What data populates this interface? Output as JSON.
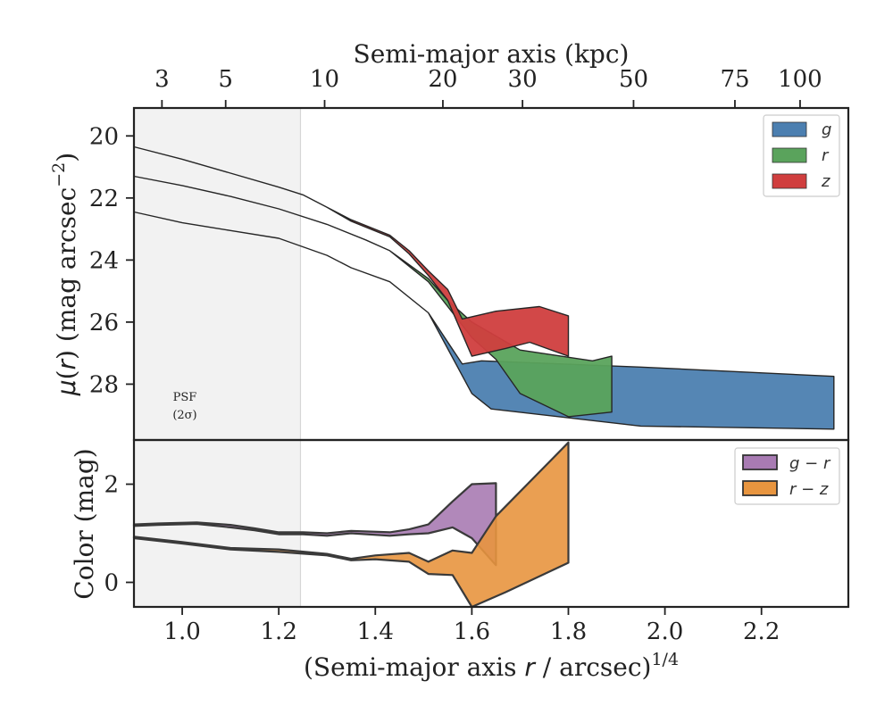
{
  "chart_data": [
    {
      "type": "area",
      "panel": "surface-brightness",
      "x_axis_label": "(Semi-major axis r / arcsec)^{1/4}",
      "x_axis_label_parts": {
        "pre": "(Semi-major axis ",
        "var": "r",
        "post": " / arcsec)",
        "sup": "1/4"
      },
      "ylabel_parts": {
        "mu": "μ",
        "paren_open": "(",
        "var": "r",
        "paren_close": ")",
        "unit": " (mag arcsec",
        "sup": "−2",
        "close": ")"
      },
      "top_xlabel": "Semi-major axis (kpc)",
      "top_ticks": [
        {
          "label": "3",
          "x": 0.958
        },
        {
          "label": "5",
          "x": 1.09
        },
        {
          "label": "10",
          "x": 1.295
        },
        {
          "label": "20",
          "x": 1.54
        },
        {
          "label": "30",
          "x": 1.705
        },
        {
          "label": "50",
          "x": 1.935
        },
        {
          "label": "75",
          "x": 2.145
        },
        {
          "label": "100",
          "x": 2.28
        }
      ],
      "xlim": [
        0.9,
        2.38
      ],
      "ylim": [
        29.8,
        19.1
      ],
      "y_inverted": true,
      "x_ticks": [
        "1.0",
        "1.2",
        "1.4",
        "1.6",
        "1.8",
        "2.0",
        "2.2"
      ],
      "y_ticks": [
        "20",
        "22",
        "24",
        "26",
        "28"
      ],
      "shaded_region": {
        "x0": 0.9,
        "x1": 1.245,
        "label_line1": "PSF",
        "label_line2": "(2σ)"
      },
      "legend": {
        "placement": "top-right",
        "entries": [
          "g",
          "r",
          "z"
        ]
      },
      "series": [
        {
          "name": "g",
          "color": "#4c7fb0",
          "upper": [
            [
              0.9,
              22.45
            ],
            [
              1.0,
              22.8
            ],
            [
              1.1,
              23.05
            ],
            [
              1.2,
              23.3
            ],
            [
              1.3,
              23.85
            ],
            [
              1.35,
              24.25
            ],
            [
              1.43,
              24.7
            ],
            [
              1.51,
              25.7
            ],
            [
              1.58,
              27.35
            ],
            [
              1.62,
              27.25
            ],
            [
              1.95,
              27.45
            ],
            [
              2.35,
              27.75
            ]
          ],
          "lower": [
            [
              0.9,
              22.45
            ],
            [
              1.0,
              22.8
            ],
            [
              1.1,
              23.05
            ],
            [
              1.2,
              23.3
            ],
            [
              1.3,
              23.85
            ],
            [
              1.35,
              24.25
            ],
            [
              1.43,
              24.7
            ],
            [
              1.51,
              25.7
            ],
            [
              1.6,
              28.3
            ],
            [
              1.64,
              28.8
            ],
            [
              1.95,
              29.35
            ],
            [
              2.35,
              29.45
            ]
          ]
        },
        {
          "name": "r",
          "color": "#5aa35c",
          "upper": [
            [
              0.9,
              21.3
            ],
            [
              1.0,
              21.6
            ],
            [
              1.1,
              21.95
            ],
            [
              1.2,
              22.35
            ],
            [
              1.3,
              22.85
            ],
            [
              1.38,
              23.35
            ],
            [
              1.43,
              23.7
            ],
            [
              1.51,
              24.6
            ],
            [
              1.55,
              25.3
            ],
            [
              1.6,
              26.0
            ],
            [
              1.7,
              26.9
            ],
            [
              1.85,
              27.25
            ],
            [
              1.89,
              27.1
            ]
          ],
          "lower": [
            [
              0.9,
              21.3
            ],
            [
              1.0,
              21.6
            ],
            [
              1.1,
              21.95
            ],
            [
              1.2,
              22.35
            ],
            [
              1.3,
              22.85
            ],
            [
              1.38,
              23.35
            ],
            [
              1.43,
              23.7
            ],
            [
              1.51,
              24.7
            ],
            [
              1.55,
              25.5
            ],
            [
              1.6,
              26.5
            ],
            [
              1.65,
              27.2
            ],
            [
              1.7,
              28.3
            ],
            [
              1.8,
              29.05
            ],
            [
              1.89,
              28.9
            ]
          ]
        },
        {
          "name": "z",
          "color": "#d03e3e",
          "upper": [
            [
              0.9,
              20.35
            ],
            [
              1.0,
              20.75
            ],
            [
              1.1,
              21.2
            ],
            [
              1.2,
              21.65
            ],
            [
              1.25,
              21.9
            ],
            [
              1.3,
              22.3
            ],
            [
              1.35,
              22.7
            ],
            [
              1.43,
              23.2
            ],
            [
              1.47,
              23.7
            ],
            [
              1.51,
              24.35
            ],
            [
              1.55,
              24.95
            ],
            [
              1.58,
              25.9
            ],
            [
              1.65,
              25.65
            ],
            [
              1.74,
              25.5
            ],
            [
              1.8,
              25.8
            ]
          ],
          "lower": [
            [
              0.9,
              20.35
            ],
            [
              1.0,
              20.75
            ],
            [
              1.1,
              21.2
            ],
            [
              1.2,
              21.65
            ],
            [
              1.25,
              21.9
            ],
            [
              1.3,
              22.3
            ],
            [
              1.35,
              22.75
            ],
            [
              1.43,
              23.25
            ],
            [
              1.47,
              23.8
            ],
            [
              1.51,
              24.5
            ],
            [
              1.55,
              25.3
            ],
            [
              1.6,
              27.1
            ],
            [
              1.67,
              26.85
            ],
            [
              1.72,
              26.65
            ],
            [
              1.8,
              27.1
            ]
          ]
        }
      ]
    },
    {
      "type": "area",
      "panel": "color",
      "ylabel": "Color (mag)",
      "xlim": [
        0.9,
        2.38
      ],
      "ylim": [
        -0.5,
        2.9
      ],
      "y_ticks": [
        "0",
        "2"
      ],
      "legend": {
        "placement": "top-right",
        "entries": [
          "g − r",
          "r − z"
        ]
      },
      "series": [
        {
          "name": "g − r",
          "color": "#a87bb3",
          "upper": [
            [
              0.9,
              1.18
            ],
            [
              0.95,
              1.2
            ],
            [
              1.03,
              1.22
            ],
            [
              1.1,
              1.17
            ],
            [
              1.15,
              1.1
            ],
            [
              1.2,
              1.02
            ],
            [
              1.25,
              1.02
            ],
            [
              1.3,
              1.0
            ],
            [
              1.35,
              1.05
            ],
            [
              1.43,
              1.02
            ],
            [
              1.47,
              1.08
            ],
            [
              1.51,
              1.18
            ],
            [
              1.56,
              1.65
            ],
            [
              1.6,
              2.0
            ],
            [
              1.65,
              2.02
            ]
          ],
          "lower": [
            [
              0.9,
              1.15
            ],
            [
              0.95,
              1.17
            ],
            [
              1.03,
              1.19
            ],
            [
              1.1,
              1.12
            ],
            [
              1.15,
              1.06
            ],
            [
              1.2,
              0.98
            ],
            [
              1.25,
              0.98
            ],
            [
              1.3,
              0.95
            ],
            [
              1.35,
              1.0
            ],
            [
              1.43,
              0.95
            ],
            [
              1.47,
              0.98
            ],
            [
              1.51,
              1.0
            ],
            [
              1.56,
              1.12
            ],
            [
              1.6,
              0.9
            ],
            [
              1.65,
              0.35
            ]
          ]
        },
        {
          "name": "r − z",
          "color": "#e8953f",
          "upper": [
            [
              0.9,
              0.93
            ],
            [
              1.0,
              0.82
            ],
            [
              1.1,
              0.7
            ],
            [
              1.2,
              0.67
            ],
            [
              1.3,
              0.58
            ],
            [
              1.35,
              0.48
            ],
            [
              1.4,
              0.55
            ],
            [
              1.47,
              0.6
            ],
            [
              1.51,
              0.42
            ],
            [
              1.56,
              0.65
            ],
            [
              1.6,
              0.6
            ],
            [
              1.65,
              1.35
            ],
            [
              1.8,
              2.85
            ]
          ],
          "lower": [
            [
              0.9,
              0.9
            ],
            [
              1.0,
              0.79
            ],
            [
              1.1,
              0.67
            ],
            [
              1.2,
              0.62
            ],
            [
              1.3,
              0.55
            ],
            [
              1.35,
              0.45
            ],
            [
              1.4,
              0.47
            ],
            [
              1.47,
              0.42
            ],
            [
              1.51,
              0.17
            ],
            [
              1.56,
              0.15
            ],
            [
              1.6,
              -0.55
            ],
            [
              1.67,
              -0.2
            ],
            [
              1.8,
              0.4
            ]
          ]
        }
      ]
    }
  ]
}
